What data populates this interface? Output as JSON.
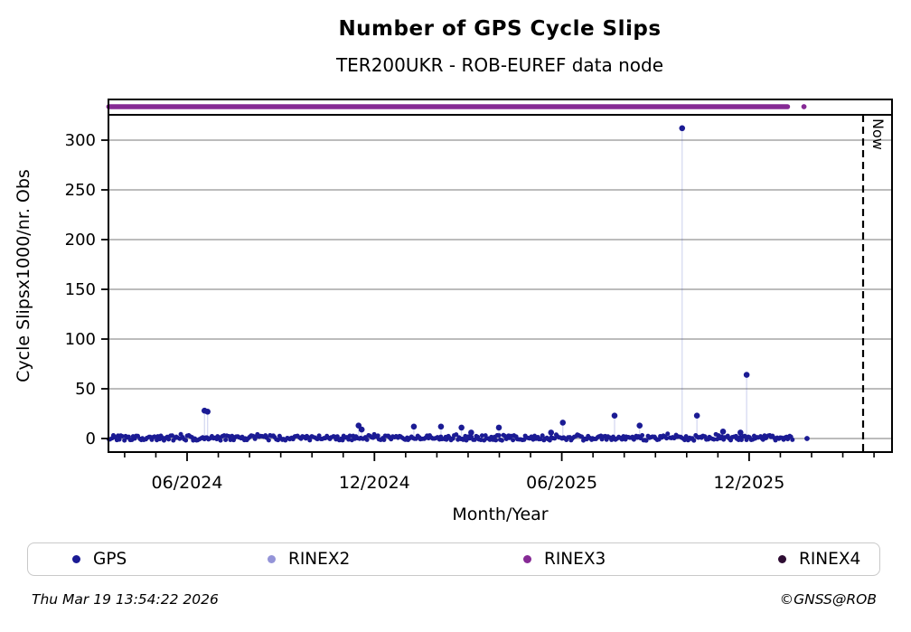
{
  "header": {
    "title": "Number of GPS Cycle Slips",
    "subtitle": "TER200UKR - ROB-EUREF data node"
  },
  "footer": {
    "timestamp": "Thu Mar 19 13:54:22 2026",
    "credit": "©GNSS@ROB"
  },
  "legend": {
    "items": [
      {
        "label": "GPS",
        "color": "#1b1b94"
      },
      {
        "label": "RINEX2",
        "color": "#9494d8"
      },
      {
        "label": "RINEX3",
        "color": "#862a95"
      },
      {
        "label": "RINEX4",
        "color": "#2e0d33"
      }
    ]
  },
  "chart_data": {
    "type": "scatter",
    "title": "Number of GPS Cycle Slips",
    "subtitle": "TER200UKR - ROB-EUREF data node",
    "xlabel": "Month/Year",
    "ylabel": "Cycle Slipsx1000/nr. Obs",
    "ylim": [
      -14,
      326
    ],
    "yticks": [
      0,
      50,
      100,
      150,
      200,
      250,
      300
    ],
    "xlim": [
      "2024-03-16",
      "2026-04-20"
    ],
    "xticks": [
      {
        "date": "2024-06-01",
        "label": "06/2024"
      },
      {
        "date": "2024-12-01",
        "label": "12/2024"
      },
      {
        "date": "2025-06-01",
        "label": "06/2025"
      },
      {
        "date": "2025-12-01",
        "label": "12/2025"
      }
    ],
    "minor_ticks_monthly": {
      "start": "2024-04-01",
      "end": "2026-04-01"
    },
    "grid": "horizontal",
    "now_line": {
      "date": "2026-03-22",
      "label": "Now",
      "style": "dashed"
    },
    "colors": {
      "grid": "#b3b3b3",
      "axis": "#000000",
      "stem": "rgba(70,80,190,0.22)"
    },
    "series": [
      {
        "name": "GPS",
        "color": "#1b1b94",
        "baseline": {
          "start": "2024-03-16",
          "end": "2026-01-14",
          "value_range": [
            0,
            3
          ],
          "description": "dense daily points fluctuating near 0"
        },
        "spikes": [
          {
            "date": "2024-06-18",
            "value": 28
          },
          {
            "date": "2024-06-21",
            "value": 27
          },
          {
            "date": "2024-11-16",
            "value": 13
          },
          {
            "date": "2024-11-19",
            "value": 9
          },
          {
            "date": "2025-01-09",
            "value": 12
          },
          {
            "date": "2025-02-05",
            "value": 12
          },
          {
            "date": "2025-02-25",
            "value": 11
          },
          {
            "date": "2025-03-04",
            "value": 6
          },
          {
            "date": "2025-03-31",
            "value": 11
          },
          {
            "date": "2025-05-21",
            "value": 6
          },
          {
            "date": "2025-06-02",
            "value": 16
          },
          {
            "date": "2025-07-22",
            "value": 23
          },
          {
            "date": "2025-08-16",
            "value": 13
          },
          {
            "date": "2025-09-27",
            "value": 312
          },
          {
            "date": "2025-10-11",
            "value": 23
          },
          {
            "date": "2025-11-06",
            "value": 7
          },
          {
            "date": "2025-11-23",
            "value": 6
          },
          {
            "date": "2025-11-29",
            "value": 64
          }
        ],
        "last_point": {
          "date": "2026-01-27",
          "value": 0
        }
      },
      {
        "name": "RINEX2",
        "color": "#9494d8",
        "points": []
      },
      {
        "name": "RINEX3",
        "color": "#862a95",
        "availability_band": {
          "start": "2024-03-16",
          "end": "2026-01-08",
          "position": "top-strip"
        },
        "isolated_points": [
          {
            "date": "2026-01-24"
          }
        ]
      },
      {
        "name": "RINEX4",
        "color": "#2e0d33",
        "points": []
      }
    ]
  }
}
